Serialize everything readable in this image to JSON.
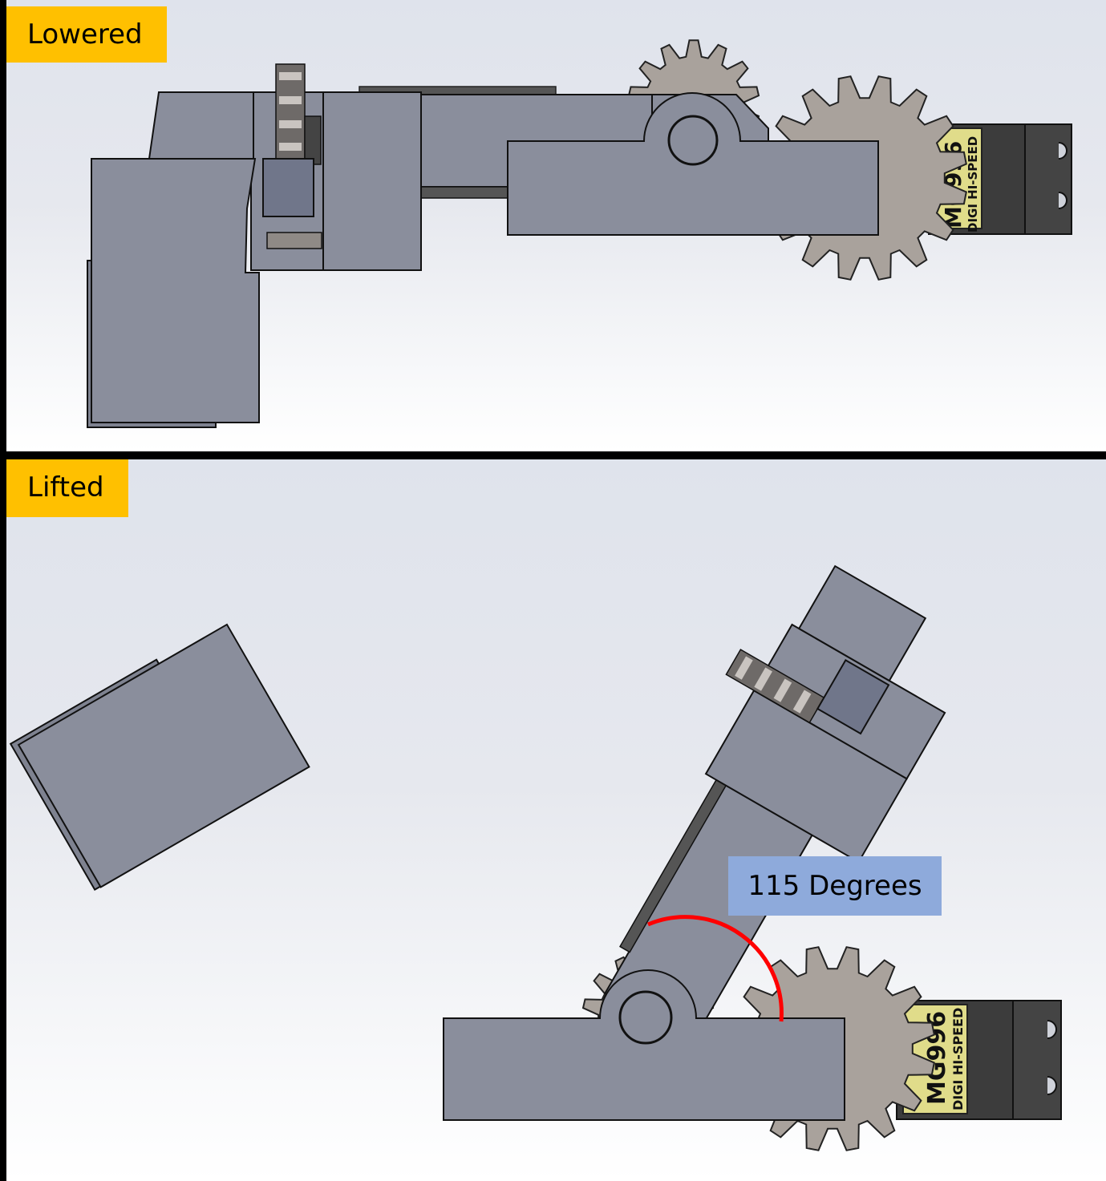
{
  "panels": {
    "lowered": {
      "label": "Lowered"
    },
    "lifted": {
      "label": "Lifted",
      "angle_label": "115 Degrees"
    }
  },
  "servo": {
    "brand_text": "DIGI HI-SPEED",
    "model_text": "MG996"
  },
  "colors": {
    "label_bg": "#ffc000",
    "angle_label_bg": "#8eaadb",
    "angle_arc": "#ff0000",
    "part_fill": "#8a8e9c",
    "gear_fill": "#a9a29c",
    "servo_body": "#3c3c3c",
    "servo_label": "#e0dc8a"
  }
}
